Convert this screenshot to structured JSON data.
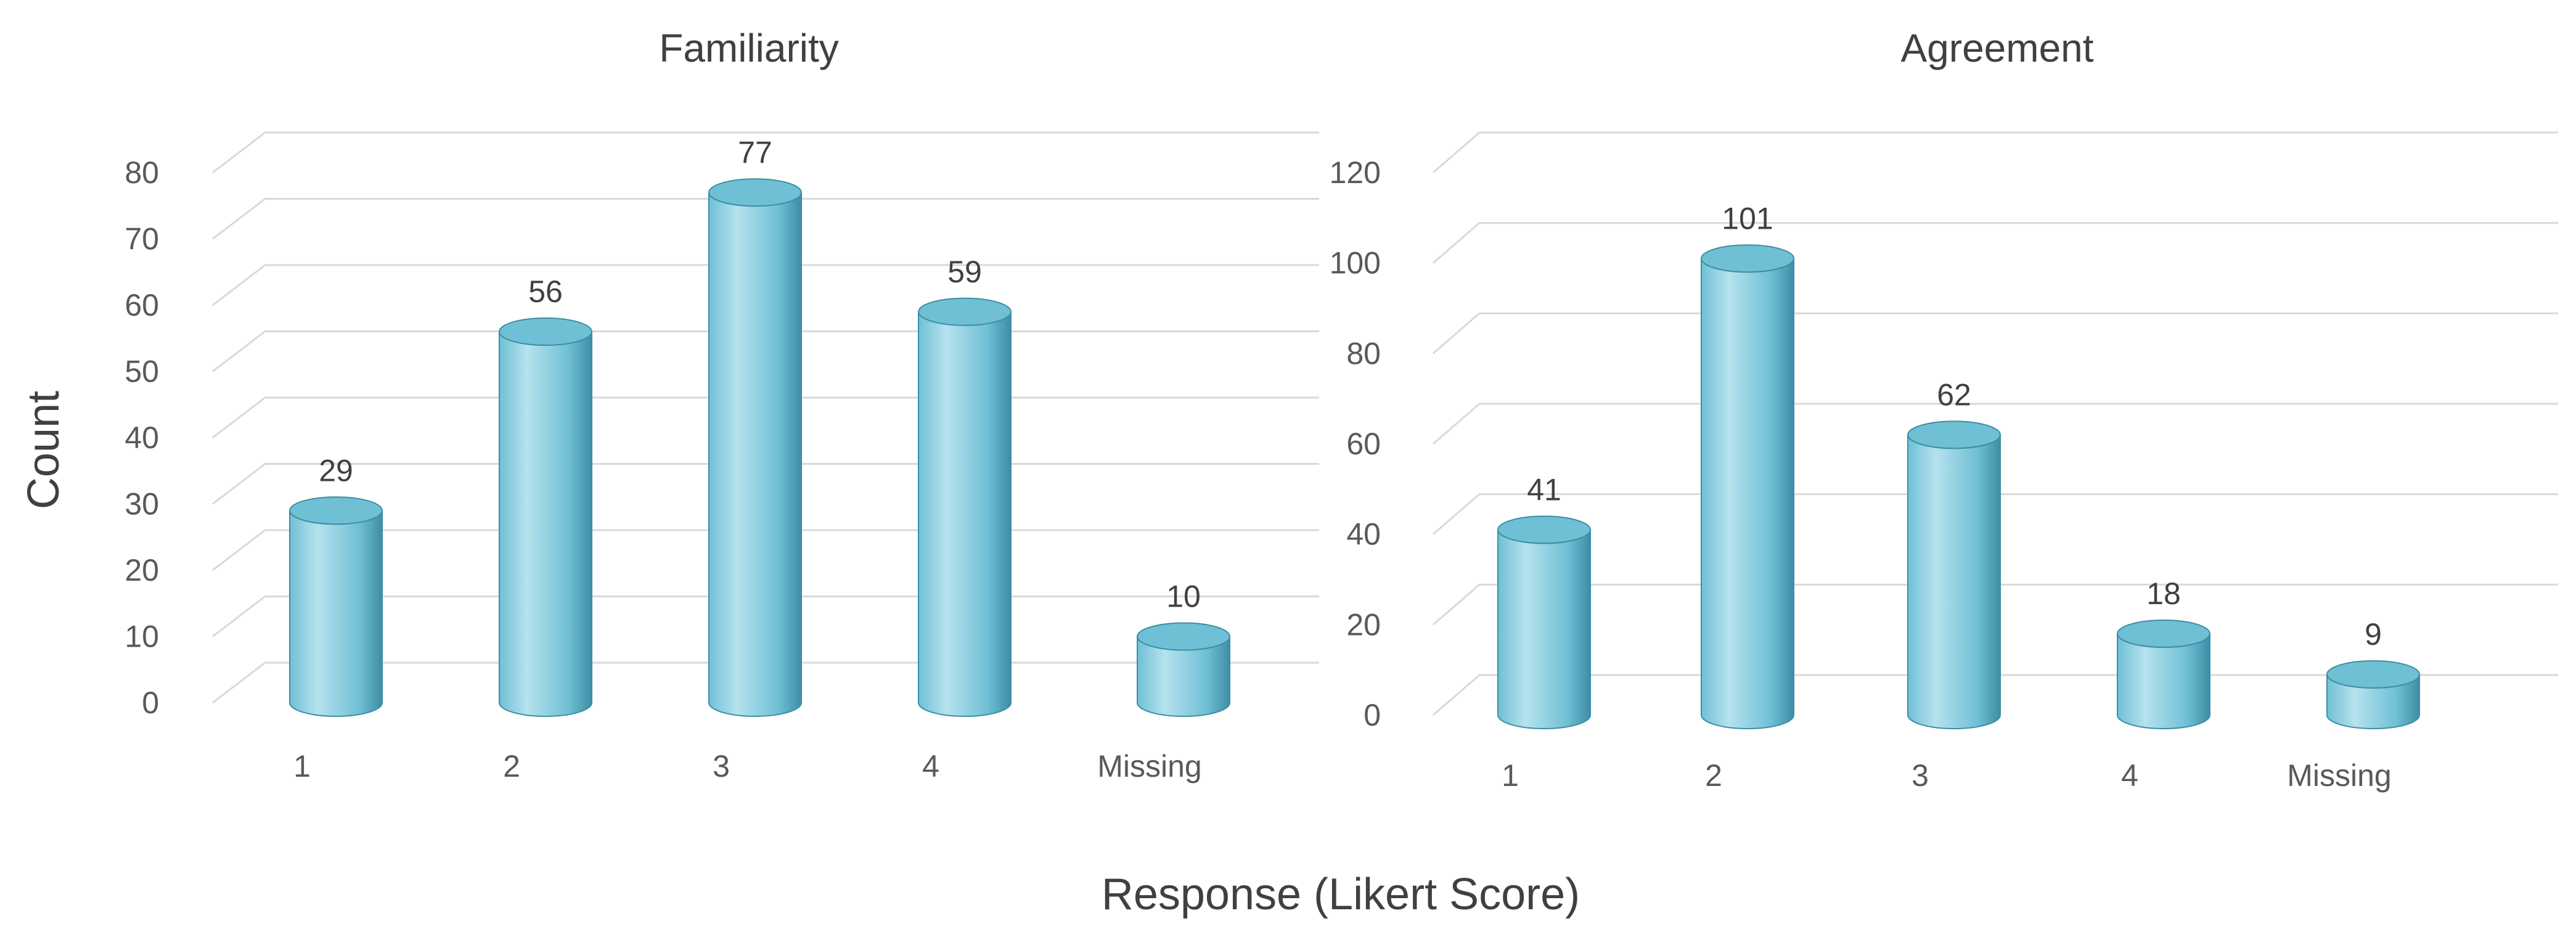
{
  "figure": {
    "ylabel": "Count",
    "xlabel": "Response (Likert Score)"
  },
  "colors": {
    "bar_light": "#b6e2ee",
    "bar_mid": "#6fc0d5",
    "bar_dark": "#3d8ea4",
    "grid": "#d9d9d9"
  },
  "chart_data": [
    {
      "type": "bar",
      "title": "Familiarity",
      "categories": [
        "1",
        "2",
        "3",
        "4",
        "Missing"
      ],
      "values": [
        29,
        56,
        77,
        59,
        10
      ],
      "ylim": [
        0,
        80
      ],
      "yticks": [
        0,
        10,
        20,
        30,
        40,
        50,
        60,
        70,
        80
      ],
      "grid": true,
      "style": "3d-cylinder"
    },
    {
      "type": "bar",
      "title": "Agreement",
      "categories": [
        "1",
        "2",
        "3",
        "4",
        "Missing"
      ],
      "values": [
        41,
        101,
        62,
        18,
        9
      ],
      "ylim": [
        0,
        120
      ],
      "yticks": [
        0,
        20,
        40,
        60,
        80,
        100,
        120
      ],
      "grid": true,
      "style": "3d-cylinder"
    }
  ]
}
